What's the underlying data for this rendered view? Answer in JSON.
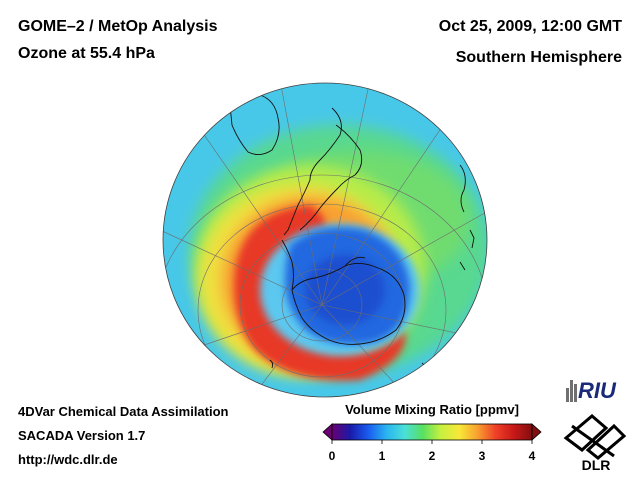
{
  "header": {
    "title_line1": "GOME–2 / MetOp Analysis",
    "title_line2": "Ozone at 55.4 hPa",
    "date": "Oct 25, 2009, 12:00 GMT",
    "region": "Southern Hemisphere"
  },
  "footer": {
    "line1": "4DVar Chemical Data Assimilation",
    "line2": "SACADA Version 1.7",
    "line3": "http://wdc.dlr.de"
  },
  "colorbar": {
    "title": "Volume Mixing Ratio [ppmv]",
    "min": 0,
    "max": 4,
    "ticks": [
      "0",
      "1",
      "2",
      "3",
      "4"
    ],
    "gradient": [
      "#6a0070",
      "#1a1aa8",
      "#1a5cf0",
      "#2ab4f0",
      "#4ae0d8",
      "#58e060",
      "#c8f040",
      "#f8e838",
      "#f8a030",
      "#f04028",
      "#c81818",
      "#801010"
    ]
  },
  "colors": {
    "ocean_background": "#48c8e8",
    "ozone_hole_core": "#2860e0",
    "collar_peak": "#e83828"
  },
  "logos": {
    "riu": "RIU",
    "dlr": "DLR"
  }
}
